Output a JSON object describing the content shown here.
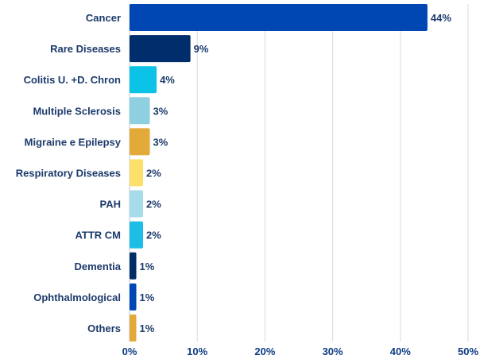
{
  "chart_data": {
    "type": "bar",
    "orientation": "horizontal",
    "categories": [
      "Cancer",
      "Rare Diseases",
      "Colitis U. +D. Chron",
      "Multiple Sclerosis",
      "Migraine e Epilepsy",
      "Respiratory Diseases",
      "PAH",
      "ATTR CM",
      "Dementia",
      "Ophthalmological",
      "Others"
    ],
    "values": [
      44,
      9,
      4,
      3,
      3,
      2,
      2,
      2,
      1,
      1,
      1
    ],
    "value_labels": [
      "44%",
      "9%",
      "4%",
      "3%",
      "3%",
      "2%",
      "2%",
      "2%",
      "1%",
      "1%",
      "1%"
    ],
    "colors": [
      "#0047b3",
      "#002d6b",
      "#0bc3e6",
      "#8fd0e0",
      "#e3aa3a",
      "#fde06a",
      "#a6dbe9",
      "#1ebde6",
      "#012d66",
      "#0047b3",
      "#e3aa3a"
    ],
    "xlim": [
      0,
      50
    ],
    "xticks": [
      0,
      10,
      20,
      30,
      40,
      50
    ],
    "xtick_labels": [
      "0%",
      "10%",
      "20%",
      "30%",
      "40%",
      "50%"
    ],
    "grid": true,
    "title": "",
    "xlabel": "",
    "ylabel": ""
  }
}
